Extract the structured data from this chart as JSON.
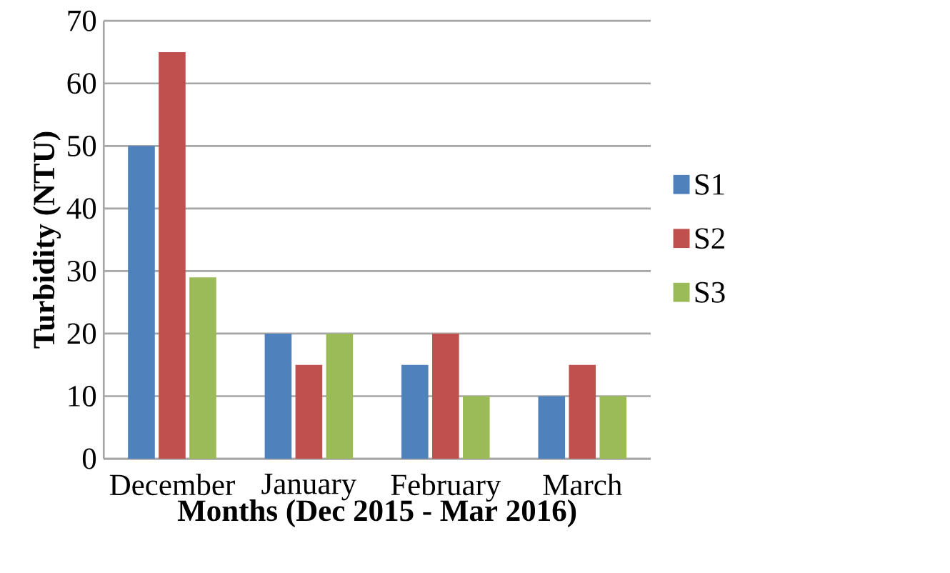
{
  "chart_data": {
    "type": "bar",
    "xlabel": "Months (Dec 2015 - Mar 2016)",
    "ylabel": "Turbidity  (NTU)",
    "categories": [
      "December",
      "January",
      "February",
      "March"
    ],
    "series": [
      {
        "name": "S1",
        "color": "#4f81bd",
        "values": [
          50,
          20,
          15,
          10
        ]
      },
      {
        "name": "S2",
        "color": "#c0504d",
        "values": [
          65,
          15,
          20,
          15
        ]
      },
      {
        "name": "S3",
        "color": "#9bbb59",
        "values": [
          29,
          20,
          10,
          10
        ]
      }
    ],
    "ylim": [
      0,
      70
    ],
    "yticks": [
      0,
      10,
      20,
      30,
      40,
      50,
      60,
      70
    ],
    "grid": "y",
    "legend": "right"
  }
}
